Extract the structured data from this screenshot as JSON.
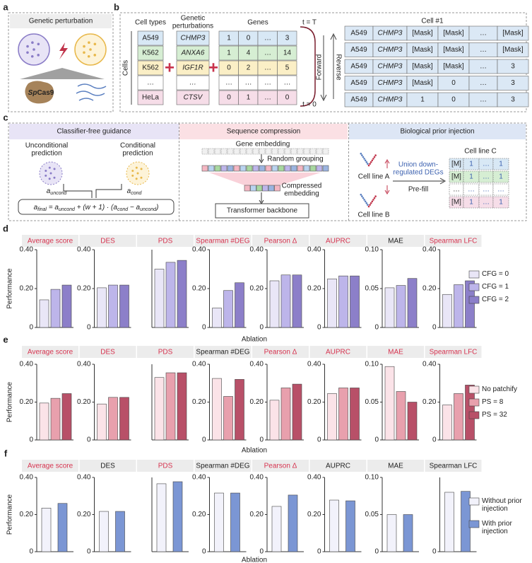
{
  "a": {
    "label": "a",
    "title": "Genetic perturbation",
    "cas9": [
      "Sp",
      "Cas9"
    ]
  },
  "b": {
    "label": "b",
    "cells_label": "Cells",
    "cell_types": {
      "header": "Cell types",
      "values": [
        "A549",
        "K562",
        "K562",
        "…",
        "HeLa"
      ]
    },
    "perturbations": {
      "header": [
        "Genetic",
        "perturbations"
      ],
      "values": [
        "CHMP3",
        "ANXA6",
        "IGF1R",
        "…",
        "CTSV"
      ]
    },
    "genes": {
      "header": "Genes",
      "rows": [
        [
          "1",
          "0",
          "…",
          "3"
        ],
        [
          "1",
          "4",
          "…",
          "14"
        ],
        [
          "0",
          "2",
          "…",
          "5"
        ],
        [
          "…",
          "…",
          "…",
          "…"
        ],
        [
          "0",
          "1",
          "…",
          "0"
        ]
      ]
    },
    "t_top": "t = T",
    "t_bottom": "t = 0",
    "forward": "Forward",
    "reverse": "Reverse",
    "cell1": {
      "header": "Cell #1",
      "rows": [
        [
          "A549",
          "CHMP3",
          "[Mask]",
          "[Mask]",
          "…",
          "[Mask]"
        ],
        [
          "A549",
          "CHMP3",
          "[Mask]",
          "[Mask]",
          "…",
          "[Mask]"
        ],
        [
          "A549",
          "CHMP3",
          "[Mask]",
          "[Mask]",
          "…",
          "3"
        ],
        [
          "A549",
          "CHMP3",
          "[Mask]",
          "0",
          "…",
          "3"
        ],
        [
          "A549",
          "CHMP3",
          "1",
          "0",
          "…",
          "3"
        ]
      ]
    }
  },
  "c": {
    "label": "c",
    "cfg": {
      "title": "Classifier-free guidance",
      "uncond": [
        "Unconditional",
        "prediction"
      ],
      "cond": [
        "Conditional",
        "prediction"
      ],
      "a_uncond": [
        [
          "a",
          "uncond"
        ]
      ],
      "a_cond": [
        [
          "a",
          "cond"
        ]
      ],
      "formula": [
        [
          "a",
          "final"
        ],
        [
          " = "
        ],
        [
          "a",
          "uncond"
        ],
        [
          " + (w + 1) · ("
        ],
        [
          "a",
          "cond"
        ],
        [
          " − "
        ],
        [
          "a",
          "uncond"
        ],
        [
          ")"
        ]
      ]
    },
    "compression": {
      "title": "Sequence compression",
      "gene_embedding": "Gene embedding",
      "random_grouping": "Random grouping",
      "compressed": [
        "Compressed",
        "embedding"
      ],
      "backbone": "Transformer backbone"
    },
    "prior": {
      "title": "Biological prior injection",
      "line_a": "Cell line A",
      "line_b": "Cell line B",
      "union": [
        "Union down-",
        "regulated DEGs"
      ],
      "prefill": "Pre-fill",
      "line_c": "Cell line C",
      "rows": [
        [
          "[M]",
          "1",
          "…",
          "1"
        ],
        [
          "[M]",
          "1",
          "…",
          "1"
        ],
        [
          "…",
          "…",
          "…",
          "…"
        ],
        [
          "[M]",
          "1",
          "…",
          "1"
        ]
      ]
    }
  },
  "chart_data": [
    {
      "type": "bar",
      "label": "d",
      "ylabel": "Performance",
      "xlabel": "Ablation",
      "series": [
        {
          "name": "CFG = 0",
          "color": "#e9e6f7"
        },
        {
          "name": "CFG = 1",
          "color": "#bdb5ea"
        },
        {
          "name": "CFG = 2",
          "color": "#8c7fc9"
        }
      ],
      "subplots": [
        {
          "title": "Average score",
          "title_color": "#d6334f",
          "values": [
            0.142,
            0.196,
            0.218
          ],
          "ylim": [
            0,
            0.4
          ],
          "yticks": [
            0,
            {
              "value": 0.2,
              "label": "0.20"
            },
            {
              "value": 0.4,
              "label": "0.40"
            }
          ]
        },
        {
          "title": "DES",
          "title_color": "#d6334f",
          "values": [
            0.204,
            0.218,
            0.218
          ],
          "ylim": [
            0,
            0.4
          ],
          "yticks": [
            0,
            {
              "value": 0.2,
              "label": "0.20"
            },
            {
              "value": 0.4,
              "label": "0.40"
            }
          ]
        },
        {
          "title": "PDS",
          "title_color": "#d6334f",
          "values": [
            0.3,
            0.335,
            0.345
          ],
          "ylim": [
            0,
            0.4
          ],
          "yticks": []
        },
        {
          "title": "Spearman #DEG",
          "title_color": "#d6334f",
          "values": [
            0.1,
            0.19,
            0.23
          ],
          "ylim": [
            0,
            0.4
          ],
          "yticks": [
            0,
            {
              "value": 0.2,
              "label": "0.20"
            },
            {
              "value": 0.4,
              "label": "0.40"
            }
          ]
        },
        {
          "title": "Pearson Δ",
          "title_color": "#d6334f",
          "values": [
            0.24,
            0.27,
            0.27
          ],
          "ylim": [
            0,
            0.4
          ],
          "yticks": [
            0,
            {
              "value": 0.2,
              "label": "0.20"
            },
            {
              "value": 0.4,
              "label": "0.40"
            }
          ]
        },
        {
          "title": "AUPRC",
          "title_color": "#d6334f",
          "values": [
            0.25,
            0.265,
            0.265
          ],
          "ylim": [
            0,
            0.4
          ],
          "yticks": [
            0,
            {
              "value": 0.2,
              "label": "0.20"
            },
            {
              "value": 0.4,
              "label": "0.40"
            }
          ]
        },
        {
          "title": "MAE",
          "title_color": "#222222",
          "values": [
            0.051,
            0.054,
            0.063
          ],
          "ylim": [
            0,
            0.1
          ],
          "yticks": [
            0,
            0.05,
            {
              "value": 0.1,
              "label": "0.10"
            }
          ]
        },
        {
          "title": "Spearman LFC",
          "title_color": "#d6334f",
          "values": [
            0.17,
            0.22,
            0.24
          ],
          "ylim": [
            0,
            0.4
          ],
          "yticks": [
            0,
            {
              "value": 0.2,
              "label": "0.20"
            },
            {
              "value": 0.4,
              "label": "0.40"
            }
          ]
        }
      ]
    },
    {
      "type": "bar",
      "label": "e",
      "ylabel": "Performance",
      "xlabel": "Ablation",
      "series": [
        {
          "name": "No patchify",
          "color": "#fbe3e8"
        },
        {
          "name": "PS = 8",
          "color": "#e8a0ad"
        },
        {
          "name": "PS = 32",
          "color": "#b85068"
        }
      ],
      "subplots": [
        {
          "title": "Average score",
          "title_color": "#d6334f",
          "values": [
            0.195,
            0.22,
            0.245
          ],
          "ylim": [
            0,
            0.4
          ],
          "yticks": [
            0,
            {
              "value": 0.2,
              "label": "0.20"
            },
            {
              "value": 0.4,
              "label": "0.40"
            }
          ]
        },
        {
          "title": "DES",
          "title_color": "#d6334f",
          "values": [
            0.19,
            0.225,
            0.225
          ],
          "ylim": [
            0,
            0.4
          ],
          "yticks": [
            0,
            {
              "value": 0.2,
              "label": "0.20"
            },
            {
              "value": 0.4,
              "label": "0.40"
            }
          ]
        },
        {
          "title": "PDS",
          "title_color": "#d6334f",
          "values": [
            0.33,
            0.355,
            0.355
          ],
          "ylim": [
            0,
            0.4
          ],
          "yticks": []
        },
        {
          "title": "Spearman #DEG",
          "title_color": "#222222",
          "values": [
            0.325,
            0.23,
            0.32
          ],
          "ylim": [
            0,
            0.4
          ],
          "yticks": [
            0,
            {
              "value": 0.2,
              "label": "0.20"
            },
            {
              "value": 0.4,
              "label": "0.40"
            }
          ]
        },
        {
          "title": "Pearson Δ",
          "title_color": "#d6334f",
          "values": [
            0.21,
            0.275,
            0.295
          ],
          "ylim": [
            0,
            0.4
          ],
          "yticks": [
            0,
            {
              "value": 0.2,
              "label": "0.20"
            },
            {
              "value": 0.4,
              "label": "0.40"
            }
          ]
        },
        {
          "title": "AUPRC",
          "title_color": "#d6334f",
          "values": [
            0.245,
            0.275,
            0.275
          ],
          "ylim": [
            0,
            0.4
          ],
          "yticks": [
            0,
            {
              "value": 0.2,
              "label": "0.20"
            },
            {
              "value": 0.4,
              "label": "0.40"
            }
          ]
        },
        {
          "title": "MAE",
          "title_color": "#d6334f",
          "values": [
            0.097,
            0.064,
            0.05
          ],
          "ylim": [
            0,
            0.1
          ],
          "yticks": [
            0,
            0.05,
            {
              "value": 0.1,
              "label": "0.10"
            }
          ]
        },
        {
          "title": "Spearman LFC",
          "title_color": "#d6334f",
          "values": [
            0.185,
            0.245,
            0.29
          ],
          "ylim": [
            0,
            0.4
          ],
          "yticks": [
            0,
            {
              "value": 0.2,
              "label": "0.20"
            },
            {
              "value": 0.4,
              "label": "0.40"
            }
          ]
        }
      ]
    },
    {
      "type": "bar",
      "label": "f",
      "ylabel": "Performance",
      "xlabel": "Ablation",
      "series": [
        {
          "name": "Without prior injection",
          "color": "#f2f2fb"
        },
        {
          "name": "With prior injection",
          "color": "#7b96d4"
        }
      ],
      "subplots": [
        {
          "title": "Average score",
          "title_color": "#d6334f",
          "values": [
            0.235,
            0.26
          ],
          "ylim": [
            0,
            0.4
          ],
          "yticks": [
            0,
            {
              "value": 0.2,
              "label": "0.20"
            },
            {
              "value": 0.4,
              "label": "0.40"
            }
          ]
        },
        {
          "title": "DES",
          "title_color": "#222222",
          "values": [
            0.217,
            0.217
          ],
          "ylim": [
            0,
            0.4
          ],
          "yticks": [
            0,
            {
              "value": 0.2,
              "label": "0.20"
            },
            {
              "value": 0.4,
              "label": "0.40"
            }
          ]
        },
        {
          "title": "PDS",
          "title_color": "#d6334f",
          "values": [
            0.366,
            0.377
          ],
          "ylim": [
            0,
            0.4
          ],
          "yticks": []
        },
        {
          "title": "Spearman #DEG",
          "title_color": "#222222",
          "values": [
            0.316,
            0.316
          ],
          "ylim": [
            0,
            0.4
          ],
          "yticks": [
            0,
            {
              "value": 0.2,
              "label": "0.20"
            },
            {
              "value": 0.4,
              "label": "0.40"
            }
          ]
        },
        {
          "title": "Pearson Δ",
          "title_color": "#d6334f",
          "values": [
            0.244,
            0.305
          ],
          "ylim": [
            0,
            0.4
          ],
          "yticks": [
            0,
            {
              "value": 0.2,
              "label": "0.20"
            },
            {
              "value": 0.4,
              "label": "0.40"
            }
          ]
        },
        {
          "title": "AUPRC",
          "title_color": "#222222",
          "values": [
            0.278,
            0.274
          ],
          "ylim": [
            0,
            0.4
          ],
          "yticks": [
            0,
            {
              "value": 0.2,
              "label": "0.20"
            },
            {
              "value": 0.4,
              "label": "0.40"
            }
          ]
        },
        {
          "title": "MAE",
          "title_color": "#222222",
          "values": [
            0.05,
            0.05
          ],
          "ylim": [
            0,
            0.1
          ],
          "yticks": [
            0,
            0.05,
            {
              "value": 0.1,
              "label": "0.10"
            }
          ]
        },
        {
          "title": "Spearman LFC",
          "title_color": "#222222",
          "values": [
            0.32,
            0.325
          ],
          "ylim": [
            0,
            0.4
          ],
          "yticks": [
            0
          ]
        }
      ]
    }
  ]
}
